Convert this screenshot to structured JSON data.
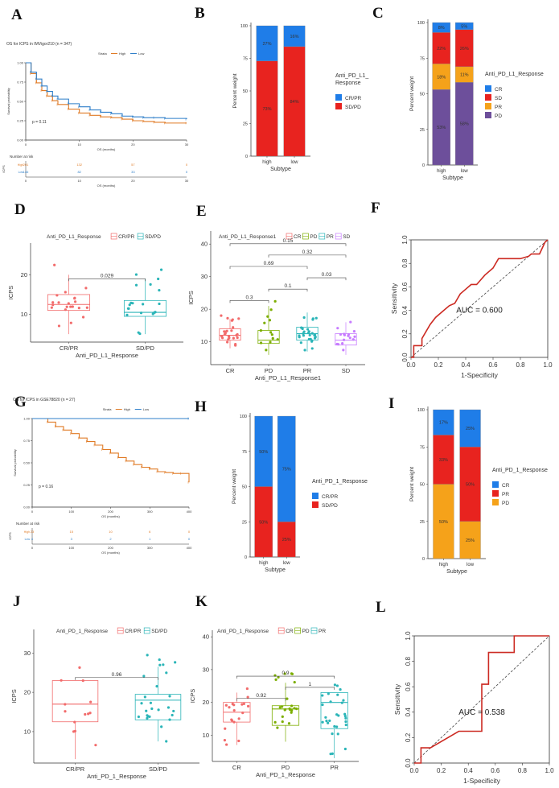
{
  "colors": {
    "high": "#e07b26",
    "low": "#2f7fc9",
    "blue": "#1f7de8",
    "red": "#e8231f",
    "orange": "#f5a21a",
    "purple": "#6d4f9b",
    "grey": "#8c8c8c",
    "roc": "#cc2a22",
    "cr": "#f26b6b",
    "pd": "#7cae00",
    "pr": "#2bb5b8",
    "sd": "#c77cff"
  },
  "panel_labels": {
    "A": "A",
    "B": "B",
    "C": "C",
    "D": "D",
    "E": "E",
    "F": "F",
    "G": "G",
    "H": "H",
    "I": "I",
    "J": "J",
    "K": "K",
    "L": "L"
  },
  "common": {
    "subtype": "Subtype",
    "percent_weight": "Percent weight",
    "icps": "ICPS",
    "survival_probability": "Survival probability",
    "os_months": "OS (months)",
    "number_at_risk": "Number at risk",
    "sensitivity": "Sensitivity",
    "specificity": "1-Specificity",
    "strata": "Strata",
    "high": "High",
    "low": "Low"
  },
  "chart_data": [
    {
      "id": "A",
      "type": "line",
      "title": "OS for ICPS in IMVigor210  (n = 347)",
      "pvalue": "p = 0.11",
      "xlabel": "OS (months)",
      "ylabel": "Survival probability",
      "xlim": [
        0,
        30
      ],
      "ylim": [
        0,
        1
      ],
      "xticks": [
        "0",
        "10",
        "20",
        "30"
      ],
      "yticks": [
        "0.00",
        "0.25",
        "0.50",
        "0.75",
        "1.00"
      ],
      "series": [
        {
          "name": "high",
          "x": [
            0,
            1,
            2,
            3,
            4,
            5,
            6,
            8,
            10,
            12,
            14,
            16,
            18,
            20,
            22,
            24,
            26,
            30
          ],
          "y": [
            1.0,
            0.86,
            0.74,
            0.64,
            0.57,
            0.51,
            0.46,
            0.4,
            0.35,
            0.32,
            0.3,
            0.29,
            0.27,
            0.25,
            0.24,
            0.23,
            0.22,
            0.22
          ]
        },
        {
          "name": "low",
          "x": [
            0,
            1,
            2,
            3,
            4,
            5,
            6,
            8,
            10,
            12,
            14,
            16,
            18,
            20,
            22,
            24,
            26,
            30
          ],
          "y": [
            1.0,
            0.88,
            0.79,
            0.7,
            0.63,
            0.57,
            0.53,
            0.47,
            0.43,
            0.39,
            0.36,
            0.34,
            0.31,
            0.3,
            0.29,
            0.29,
            0.28,
            0.27
          ]
        }
      ],
      "risk_table": {
        "high": [
          "201",
          "132",
          "57",
          "0"
        ],
        "low": [
          "146",
          "82",
          "33",
          "0"
        ]
      }
    },
    {
      "id": "B",
      "type": "bar",
      "stacked": true,
      "categories": [
        "high",
        "low"
      ],
      "xlabel": "Subtype",
      "ylabel": "Percent weight",
      "yticks": [
        "0",
        "25",
        "50",
        "75",
        "100"
      ],
      "legend_title": "Anti_PD_L1_\nResponse",
      "series": [
        {
          "name": "SD/PD",
          "values": [
            73,
            84
          ],
          "labels": [
            "73%",
            "84%"
          ]
        },
        {
          "name": "CR/PR",
          "values": [
            27,
            16
          ],
          "labels": [
            "27%",
            "16%"
          ]
        }
      ]
    },
    {
      "id": "C",
      "type": "bar",
      "stacked": true,
      "categories": [
        "high",
        "low"
      ],
      "xlabel": "Subtype",
      "ylabel": "Percent weight",
      "yticks": [
        "0",
        "25",
        "50",
        "75",
        "100"
      ],
      "legend_title": "Anti_PD_L1_Response",
      "series": [
        {
          "name": "PD",
          "values": [
            53,
            58
          ],
          "labels": [
            "53%",
            "58%"
          ]
        },
        {
          "name": "PR",
          "values": [
            18,
            11
          ],
          "labels": [
            "18%",
            "11%"
          ]
        },
        {
          "name": "SD",
          "values": [
            22,
            26
          ],
          "labels": [
            "22%",
            "26%"
          ]
        },
        {
          "name": "CR",
          "values": [
            8,
            5
          ],
          "labels": [
            "8%",
            "5%"
          ]
        }
      ]
    },
    {
      "id": "D",
      "type": "scatter",
      "subtype": "boxplot",
      "legend_title": "Anti_PD_L1_Response",
      "xlabel": "Anti_PD_L1_Response",
      "ylabel": "ICPS",
      "ylim": [
        3,
        28
      ],
      "yticks": [
        "10",
        "20"
      ],
      "categories": [
        "CR/PR",
        "SD/PD"
      ],
      "boxes": [
        {
          "min": 5,
          "q1": 11,
          "median": 12.5,
          "q3": 15,
          "max": 20
        },
        {
          "min": 5,
          "q1": 9.5,
          "median": 10.5,
          "q3": 13.5,
          "max": 19
        }
      ],
      "comparisons": [
        {
          "from": 0,
          "to": 1,
          "label": "0.029"
        }
      ]
    },
    {
      "id": "E",
      "type": "scatter",
      "subtype": "boxplot",
      "legend_title": "Anti_PD_L1_Response1",
      "xlabel": "Anti_PD_L1_Response1",
      "ylabel": "ICPS",
      "ylim": [
        3,
        44
      ],
      "yticks": [
        "10",
        "20",
        "30",
        "40"
      ],
      "categories": [
        "CR",
        "PD",
        "PR",
        "SD"
      ],
      "boxes": [
        {
          "min": 8,
          "q1": 10.5,
          "median": 12,
          "q3": 14,
          "max": 17
        },
        {
          "min": 6,
          "q1": 9.5,
          "median": 10.5,
          "q3": 13.5,
          "max": 21
        },
        {
          "min": 7,
          "q1": 10.5,
          "median": 12.5,
          "q3": 14.5,
          "max": 19
        },
        {
          "min": 6,
          "q1": 9,
          "median": 10.5,
          "q3": 12.5,
          "max": 16
        }
      ],
      "comparisons": [
        {
          "from": 0,
          "to": 1,
          "label": "0.3"
        },
        {
          "from": 0,
          "to": 2,
          "label": "0.69"
        },
        {
          "from": 0,
          "to": 3,
          "label": "0.15"
        },
        {
          "from": 1,
          "to": 2,
          "label": "0.1"
        },
        {
          "from": 1,
          "to": 3,
          "label": "0.32"
        },
        {
          "from": 2,
          "to": 3,
          "label": "0.03"
        }
      ]
    },
    {
      "id": "F",
      "type": "line",
      "subtype": "roc",
      "xlabel": "1-Specificity",
      "ylabel": "Sensitivity",
      "auc_label": "AUC = 0.600",
      "xticks": [
        "0.0",
        "0.2",
        "0.4",
        "0.6",
        "0.8",
        "1.0"
      ],
      "yticks": [
        "0.0",
        "0.2",
        "0.4",
        "0.6",
        "0.8",
        "1.0"
      ],
      "x": [
        0,
        0.02,
        0.02,
        0.08,
        0.08,
        0.14,
        0.18,
        0.22,
        0.28,
        0.32,
        0.34,
        0.36,
        0.4,
        0.44,
        0.48,
        0.54,
        0.6,
        0.64,
        0.68,
        0.72,
        0.8,
        0.86,
        0.88,
        0.94,
        0.98,
        1.0
      ],
      "y": [
        0,
        0,
        0.1,
        0.1,
        0.16,
        0.28,
        0.34,
        0.38,
        0.44,
        0.46,
        0.5,
        0.54,
        0.58,
        0.62,
        0.62,
        0.7,
        0.76,
        0.84,
        0.84,
        0.84,
        0.84,
        0.86,
        0.88,
        0.88,
        0.98,
        1.0
      ]
    },
    {
      "id": "G",
      "type": "line",
      "title": "OS for ICPS in GSE78820  (n = 27)",
      "pvalue": "p = 0.16",
      "xlabel": "OS (months)",
      "ylabel": "Survival probability",
      "xlim": [
        0,
        400
      ],
      "ylim": [
        0,
        1
      ],
      "xticks": [
        "0",
        "100",
        "200",
        "300",
        "400"
      ],
      "yticks": [
        "0.00",
        "0.25",
        "0.50",
        "0.75",
        "1.00"
      ],
      "series": [
        {
          "name": "high",
          "x": [
            0,
            40,
            60,
            80,
            100,
            120,
            140,
            160,
            180,
            200,
            220,
            240,
            260,
            280,
            300,
            320,
            340,
            360,
            380,
            400
          ],
          "y": [
            1.0,
            0.96,
            0.91,
            0.87,
            0.83,
            0.78,
            0.74,
            0.7,
            0.65,
            0.61,
            0.56,
            0.52,
            0.48,
            0.45,
            0.43,
            0.4,
            0.39,
            0.38,
            0.38,
            0.28
          ]
        },
        {
          "name": "low",
          "x": [
            0,
            400
          ],
          "y": [
            1.0,
            1.0
          ]
        }
      ],
      "risk_table": {
        "high": [
          "23",
          "15",
          "10",
          "6",
          "0"
        ],
        "low": [
          "4",
          "3",
          "2",
          "1",
          "0"
        ]
      }
    },
    {
      "id": "H",
      "type": "bar",
      "stacked": true,
      "categories": [
        "high",
        "low"
      ],
      "xlabel": "Subtype",
      "ylabel": "Percent weight",
      "yticks": [
        "0",
        "25",
        "50",
        "75",
        "100"
      ],
      "legend_title": "Anti_PD_1_Response",
      "series": [
        {
          "name": "SD/PD",
          "values": [
            50,
            25
          ],
          "labels": [
            "50%",
            "25%"
          ]
        },
        {
          "name": "CR/PR",
          "values": [
            50,
            75
          ],
          "labels": [
            "50%",
            "75%"
          ]
        }
      ]
    },
    {
      "id": "I",
      "type": "bar",
      "stacked": true,
      "categories": [
        "high",
        "low"
      ],
      "xlabel": "Subtype",
      "ylabel": "Percent weight",
      "yticks": [
        "0",
        "25",
        "50",
        "75",
        "100"
      ],
      "legend_title": "Anti_PD_1_Response",
      "series": [
        {
          "name": "PD",
          "values": [
            50,
            25
          ],
          "labels": [
            "50%",
            "25%"
          ]
        },
        {
          "name": "PR",
          "values": [
            33,
            50
          ],
          "labels": [
            "33%",
            "50%"
          ]
        },
        {
          "name": "CR",
          "values": [
            17,
            25
          ],
          "labels": [
            "17%",
            "25%"
          ]
        }
      ]
    },
    {
      "id": "J",
      "type": "scatter",
      "subtype": "boxplot",
      "legend_title": "Anti_PD_1_Response",
      "xlabel": "Anti_PD_1_Response",
      "ylabel": "ICPS",
      "ylim": [
        2,
        36
      ],
      "yticks": [
        "10",
        "20",
        "30"
      ],
      "categories": [
        "CR/PR",
        "SD/PD"
      ],
      "boxes": [
        {
          "min": 3,
          "q1": 12.5,
          "median": 17,
          "q3": 23,
          "max": 23
        },
        {
          "min": 7.5,
          "q1": 13,
          "median": 18,
          "q3": 19.5,
          "max": 26.5
        }
      ],
      "comparisons": [
        {
          "from": 0,
          "to": 1,
          "label": "0.96"
        }
      ]
    },
    {
      "id": "K",
      "type": "scatter",
      "subtype": "boxplot",
      "legend_title": "Anti_PD_1_Response",
      "xlabel": "Anti_PD_1_Response",
      "ylabel": "ICPS",
      "ylim": [
        2,
        42
      ],
      "yticks": [
        "10",
        "20",
        "30",
        "40"
      ],
      "categories": [
        "CR",
        "PD",
        "PR"
      ],
      "boxes": [
        {
          "min": 7,
          "q1": 14,
          "median": 17,
          "q3": 20,
          "max": 23
        },
        {
          "min": 8,
          "q1": 13,
          "median": 18,
          "q3": 19,
          "max": 26
        },
        {
          "min": 3,
          "q1": 12,
          "median": 20,
          "q3": 23,
          "max": 23
        }
      ],
      "comparisons": [
        {
          "from": 0,
          "to": 1,
          "label": "0.92"
        },
        {
          "from": 0,
          "to": 2,
          "label": "0.9"
        },
        {
          "from": 1,
          "to": 2,
          "label": "1"
        }
      ]
    },
    {
      "id": "L",
      "type": "line",
      "subtype": "roc",
      "xlabel": "1-Specificity",
      "ylabel": "Sensitivity",
      "auc_label": "AUC = 0.538",
      "xticks": [
        "0.0",
        "0.2",
        "0.4",
        "0.6",
        "0.8",
        "1.0"
      ],
      "yticks": [
        "0.0",
        "0.2",
        "0.4",
        "0.6",
        "0.8",
        "1.0"
      ],
      "x": [
        0,
        0.05,
        0.05,
        0.12,
        0.33,
        0.5,
        0.5,
        0.55,
        0.55,
        0.74,
        0.74,
        1.0
      ],
      "y": [
        0,
        0,
        0.12,
        0.12,
        0.25,
        0.25,
        0.62,
        0.62,
        0.87,
        0.87,
        1.0,
        1.0
      ]
    }
  ]
}
